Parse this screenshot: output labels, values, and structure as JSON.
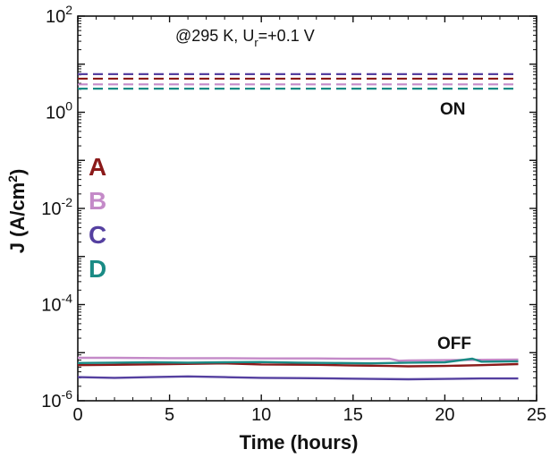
{
  "chart_data": {
    "type": "line",
    "title": "",
    "xlabel": "Time (hours)",
    "ylabel": "J (A/cm",
    "ylabel_sup": "2",
    "ylabel_tail": ")",
    "xlim": [
      0,
      25
    ],
    "ylim": [
      1e-06,
      100
    ],
    "yscale": "log",
    "xticks": [
      0,
      5,
      10,
      15,
      20,
      25
    ],
    "yticks": [
      {
        "value": 1e-06,
        "base": "10",
        "exp": "-6"
      },
      {
        "value": 0.0001,
        "base": "10",
        "exp": "-4"
      },
      {
        "value": 0.01,
        "base": "10",
        "exp": "-2"
      },
      {
        "value": 1,
        "base": "10",
        "exp": "0"
      },
      {
        "value": 100,
        "base": "10",
        "exp": "2"
      }
    ],
    "grid": false,
    "legend_position": "left",
    "annotations": {
      "condition_prefix": "@295 K, U",
      "condition_sub": "r",
      "condition_suffix": "=+0.1 V",
      "on_label": "ON",
      "off_label": "OFF"
    },
    "series": [
      {
        "name": "A",
        "color": "#8b1a1a",
        "on_values": [
          5.0,
          5.0
        ],
        "off_x": [
          0,
          2,
          5,
          8,
          10,
          13,
          15,
          17,
          18,
          20,
          22,
          24
        ],
        "off_values": [
          5.5e-06,
          5.6e-06,
          5.8e-06,
          6e-06,
          5.7e-06,
          5.6e-06,
          5.4e-06,
          5.3e-06,
          5.2e-06,
          5.3e-06,
          5.5e-06,
          5.8e-06
        ]
      },
      {
        "name": "B",
        "color": "#c48ac8",
        "on_values": [
          3.8,
          3.8
        ],
        "off_x": [
          0,
          2,
          5,
          8,
          10,
          13,
          15,
          17,
          17.5,
          18,
          20,
          22,
          24
        ],
        "off_values": [
          7.8e-06,
          7.8e-06,
          7.7e-06,
          7.7e-06,
          7.6e-06,
          7.6e-06,
          7.5e-06,
          7.5e-06,
          6.8e-06,
          6.9e-06,
          7e-06,
          7.1e-06,
          7.2e-06
        ]
      },
      {
        "name": "C",
        "color": "#5540a0",
        "on_values": [
          6.2,
          6.2
        ],
        "off_x": [
          0,
          2,
          4,
          6,
          8,
          10,
          12,
          14,
          16,
          18,
          20,
          22,
          24
        ],
        "off_values": [
          3.1e-06,
          3e-06,
          3.1e-06,
          3.2e-06,
          3.1e-06,
          3e-06,
          2.95e-06,
          2.9e-06,
          2.85e-06,
          2.8e-06,
          2.85e-06,
          2.9e-06,
          2.9e-06
        ]
      },
      {
        "name": "D",
        "color": "#1a8b85",
        "on_values": [
          3.1,
          3.1
        ],
        "off_x": [
          0,
          2,
          4,
          6,
          8,
          10,
          12,
          14,
          16,
          18,
          20,
          21.5,
          22,
          24
        ],
        "off_values": [
          6.1e-06,
          6.2e-06,
          6.3e-06,
          6.2e-06,
          6.3e-06,
          6.4e-06,
          6.2e-06,
          6.1e-06,
          6e-06,
          6.2e-06,
          6.3e-06,
          7.5e-06,
          6.5e-06,
          6.6e-06
        ]
      }
    ]
  }
}
